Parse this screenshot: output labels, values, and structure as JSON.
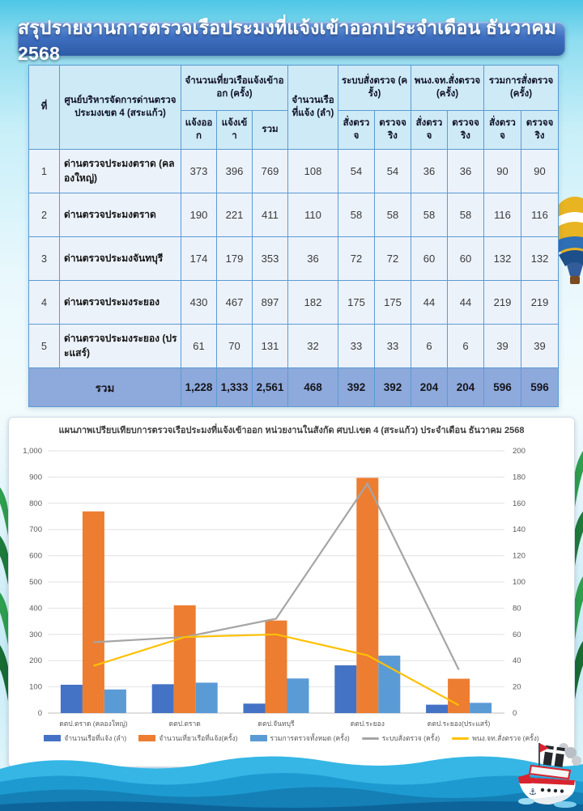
{
  "title": "สรุปรายงานการตรวจเรือประมงที่แจ้งเข้าออกประจำเดือน ธันวาคม 2568",
  "theme": {
    "title_bar_top": "#6d9ddd",
    "title_bar_bottom": "#2d5aa6",
    "table_header_bg": "#cdeaf6",
    "table_row_bg": "#ecf2fa",
    "table_total_bg": "#8ea9db",
    "table_border": "#5b9bd5"
  },
  "table": {
    "header": {
      "no": "ที่",
      "center": "ศูนย์บริหารจัดการด่านตรวจประมงเขต 4 (สระแก้ว)",
      "trips_group": "จำนวนเที่ยวเรือแจ้งเข้าออก (ครั้ง)",
      "vessels": "จำนวนเรือที่แจ้ง (ลำ)",
      "system_group": "ระบบสั่งตรวจ (ครั้ง)",
      "officer_group": "พนง.จท.สั่งตรวจ (ครั้ง)",
      "total_group": "รวมการสั่งตรวจ (ครั้ง)",
      "subheaders": [
        "แจ้งออก",
        "แจ้งเข้า",
        "รวม",
        "สั่งตรวจ",
        "ตรวจจริง",
        "สั่งตรวจ",
        "ตรวจจริง",
        "สั่งตรวจ",
        "ตรวจจริง"
      ]
    },
    "rows": [
      {
        "no": "1",
        "name": "ด่านตรวจประมงตราด (คลองใหญ่)",
        "values": [
          "373",
          "396",
          "769",
          "108",
          "54",
          "54",
          "36",
          "36",
          "90",
          "90"
        ]
      },
      {
        "no": "2",
        "name": "ด่านตรวจประมงตราด",
        "values": [
          "190",
          "221",
          "411",
          "110",
          "58",
          "58",
          "58",
          "58",
          "116",
          "116"
        ]
      },
      {
        "no": "3",
        "name": "ด่านตรวจประมงจันทบุรี",
        "values": [
          "174",
          "179",
          "353",
          "36",
          "72",
          "72",
          "60",
          "60",
          "132",
          "132"
        ]
      },
      {
        "no": "4",
        "name": "ด่านตรวจประมงระยอง",
        "values": [
          "430",
          "467",
          "897",
          "182",
          "175",
          "175",
          "44",
          "44",
          "219",
          "219"
        ]
      },
      {
        "no": "5",
        "name": "ด่านตรวจประมงระยอง (ประแสร์)",
        "values": [
          "61",
          "70",
          "131",
          "32",
          "33",
          "33",
          "6",
          "6",
          "39",
          "39"
        ]
      }
    ],
    "total": {
      "label": "รวม",
      "values": [
        "1,228",
        "1,333",
        "2,561",
        "468",
        "392",
        "392",
        "204",
        "204",
        "596",
        "596"
      ]
    }
  },
  "chart_data": {
    "type": "combo-bar-line",
    "title": "แผนภาพเปรียบเทียบการตรวจเรือประมงที่แจ้งเข้าออก หน่วยงานในสังกัด ศบป.เขต 4 (สระแก้ว) ประจำเดือน ธันวาคม 2568",
    "categories": [
      "ดตป.ตราด (คลองใหญ่)",
      "ดตป.ตราด",
      "ดตป.จันทบุรี",
      "ดตป.ระยอง",
      "ดตป.ระยอง(ประแสร์)"
    ],
    "series": [
      {
        "name": "จำนวนเรือที่แจ้ง (ลำ)",
        "type": "bar",
        "axis": "left",
        "color": "#4472c4",
        "values": [
          108,
          110,
          36,
          182,
          32
        ]
      },
      {
        "name": "จำนวนเที่ยวเรือที่แจ้ง(ครั้ง)",
        "type": "bar",
        "axis": "left",
        "color": "#ed7d31",
        "values": [
          769,
          411,
          353,
          897,
          131
        ]
      },
      {
        "name": "รวมการตรวจทั้งหมด (ครั้ง)",
        "type": "bar",
        "axis": "left",
        "color": "#5b9bd5",
        "values": [
          90,
          116,
          132,
          219,
          39
        ]
      },
      {
        "name": "ระบบสั่งตรวจ (ครั้ง)",
        "type": "line",
        "axis": "right",
        "color": "#a5a5a5",
        "values": [
          54,
          58,
          72,
          175,
          33
        ]
      },
      {
        "name": "พนง.จท.สั่งตรวจ (ครั้ง)",
        "type": "line",
        "axis": "right",
        "color": "#ffc000",
        "values": [
          36,
          58,
          60,
          44,
          6
        ]
      }
    ],
    "left_axis": {
      "min": 0,
      "max": 1000,
      "step": 100
    },
    "right_axis": {
      "min": 0,
      "max": 200,
      "step": 20
    },
    "grid": true,
    "legend_position": "bottom"
  },
  "decor": {
    "anchor_icon": "⚓"
  }
}
